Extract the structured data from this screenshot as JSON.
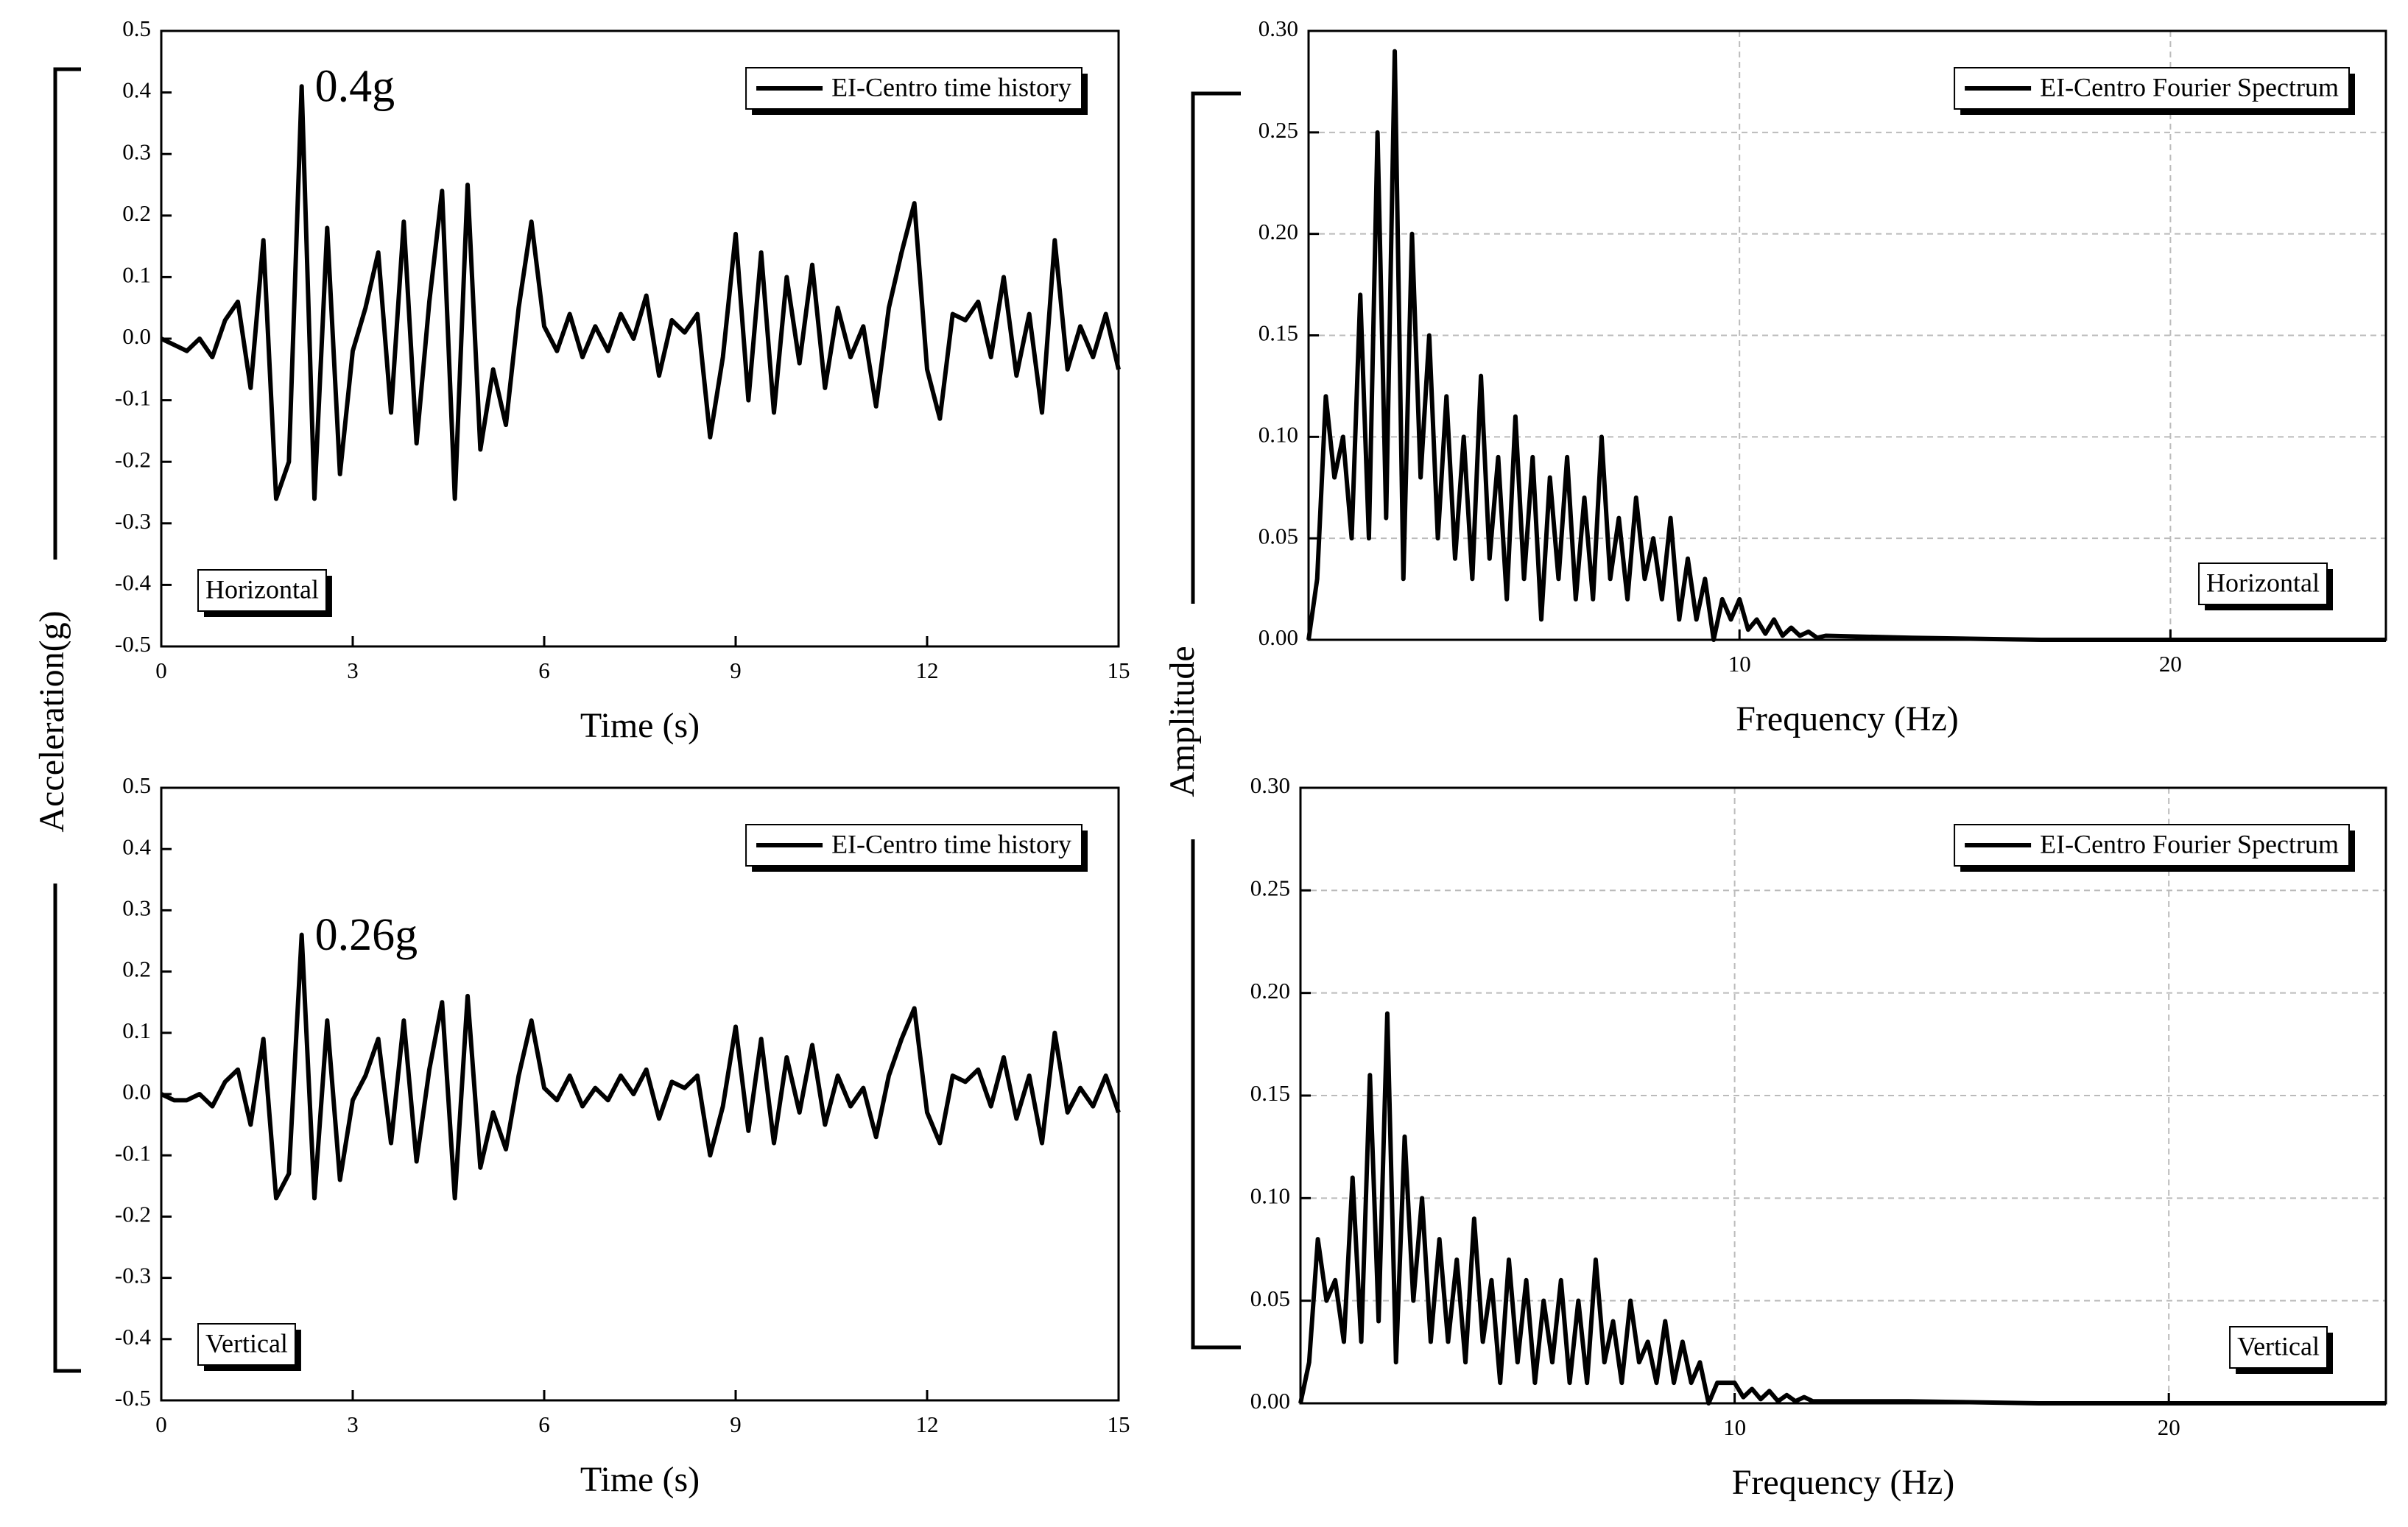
{
  "shared_labels": {
    "left": "Acceleration(g)",
    "middle": "Amplitude"
  },
  "chart_data": [
    {
      "type": "line",
      "xlabel": "Time (s)",
      "legend": "upper right",
      "panel_label": "Horizontal",
      "peak_label": "0.4g",
      "grid": false,
      "xlim": [
        0,
        15
      ],
      "xticks": [
        0,
        3,
        6,
        9,
        12,
        15
      ],
      "ylim": [
        -0.5,
        0.5
      ],
      "yticks": [
        -0.5,
        -0.4,
        -0.3,
        -0.2,
        -0.1,
        {
          "value": 0,
          "label": "0.0"
        },
        0.1,
        0.2,
        0.3,
        0.4,
        0.5
      ],
      "x": [
        0,
        0.2,
        0.4,
        0.6,
        0.8,
        1,
        1.2,
        1.4,
        1.6,
        1.8,
        2,
        2.2,
        2.4,
        2.6,
        2.8,
        3,
        3.2,
        3.4,
        3.6,
        3.8,
        4,
        4.2,
        4.4,
        4.6,
        4.8,
        5,
        5.2,
        5.4,
        5.6,
        5.8,
        6,
        6.2,
        6.4,
        6.6,
        6.8,
        7,
        7.2,
        7.4,
        7.6,
        7.8,
        8,
        8.2,
        8.4,
        8.6,
        8.8,
        9,
        9.2,
        9.4,
        9.6,
        9.8,
        10,
        10.2,
        10.4,
        10.6,
        10.8,
        11,
        11.2,
        11.4,
        11.6,
        11.8,
        12,
        12.2,
        12.4,
        12.6,
        12.8,
        13,
        13.2,
        13.4,
        13.6,
        13.8,
        14,
        14.2,
        14.4,
        14.6,
        14.8,
        15
      ],
      "series": [
        {
          "name": "EI-Centro time history",
          "color": "#000000",
          "values": [
            0,
            -0.01,
            -0.02,
            0,
            -0.03,
            0.03,
            0.06,
            -0.08,
            0.16,
            -0.26,
            -0.2,
            0.41,
            -0.26,
            0.18,
            -0.22,
            -0.02,
            0.05,
            0.14,
            -0.12,
            0.19,
            -0.17,
            0.06,
            0.24,
            -0.26,
            0.25,
            -0.18,
            -0.05,
            -0.14,
            0.05,
            0.19,
            0.02,
            -0.02,
            0.04,
            -0.03,
            0.02,
            -0.02,
            0.04,
            0,
            0.07,
            -0.06,
            0.03,
            0.01,
            0.04,
            -0.16,
            -0.03,
            0.17,
            -0.1,
            0.14,
            -0.12,
            0.1,
            -0.04,
            0.12,
            -0.08,
            0.05,
            -0.03,
            0.02,
            -0.11,
            0.05,
            0.14,
            0.22,
            -0.05,
            -0.13,
            0.04,
            0.03,
            0.06,
            -0.03,
            0.1,
            -0.06,
            0.04,
            -0.12,
            0.16,
            -0.05,
            0.02,
            -0.03,
            0.04,
            -0.05
          ]
        }
      ]
    },
    {
      "type": "line",
      "xlabel": "Time (s)",
      "legend": "upper right",
      "panel_label": "Vertical",
      "peak_label": "0.26g",
      "grid": false,
      "xlim": [
        0,
        15
      ],
      "xticks": [
        0,
        3,
        6,
        9,
        12,
        15
      ],
      "ylim": [
        -0.5,
        0.5
      ],
      "yticks": [
        -0.5,
        -0.4,
        -0.3,
        -0.2,
        -0.1,
        {
          "value": 0,
          "label": "0.0"
        },
        0.1,
        0.2,
        0.3,
        0.4,
        0.5
      ],
      "x": [
        0,
        0.2,
        0.4,
        0.6,
        0.8,
        1,
        1.2,
        1.4,
        1.6,
        1.8,
        2,
        2.2,
        2.4,
        2.6,
        2.8,
        3,
        3.2,
        3.4,
        3.6,
        3.8,
        4,
        4.2,
        4.4,
        4.6,
        4.8,
        5,
        5.2,
        5.4,
        5.6,
        5.8,
        6,
        6.2,
        6.4,
        6.6,
        6.8,
        7,
        7.2,
        7.4,
        7.6,
        7.8,
        8,
        8.2,
        8.4,
        8.6,
        8.8,
        9,
        9.2,
        9.4,
        9.6,
        9.8,
        10,
        10.2,
        10.4,
        10.6,
        10.8,
        11,
        11.2,
        11.4,
        11.6,
        11.8,
        12,
        12.2,
        12.4,
        12.6,
        12.8,
        13,
        13.2,
        13.4,
        13.6,
        13.8,
        14,
        14.2,
        14.4,
        14.6,
        14.8,
        15
      ],
      "series": [
        {
          "name": "EI-Centro time history",
          "color": "#000000",
          "values": [
            0,
            -0.01,
            -0.01,
            0,
            -0.02,
            0.02,
            0.04,
            -0.05,
            0.09,
            -0.17,
            -0.13,
            0.26,
            -0.17,
            0.12,
            -0.14,
            -0.01,
            0.03,
            0.09,
            -0.08,
            0.12,
            -0.11,
            0.04,
            0.15,
            -0.17,
            0.16,
            -0.12,
            -0.03,
            -0.09,
            0.03,
            0.12,
            0.01,
            -0.01,
            0.03,
            -0.02,
            0.01,
            -0.01,
            0.03,
            0,
            0.04,
            -0.04,
            0.02,
            0.01,
            0.03,
            -0.1,
            -0.02,
            0.11,
            -0.06,
            0.09,
            -0.08,
            0.06,
            -0.03,
            0.08,
            -0.05,
            0.03,
            -0.02,
            0.01,
            -0.07,
            0.03,
            0.09,
            0.14,
            -0.03,
            -0.08,
            0.03,
            0.02,
            0.04,
            -0.02,
            0.06,
            -0.04,
            0.03,
            -0.08,
            0.1,
            -0.03,
            0.01,
            -0.02,
            0.03,
            -0.03
          ]
        }
      ]
    },
    {
      "type": "line",
      "xlabel": "Frequency (Hz)",
      "legend": "upper right",
      "panel_label": "Horizontal",
      "grid": true,
      "xlim": [
        0,
        25
      ],
      "xticks": [
        10,
        20
      ],
      "ylim": [
        0,
        0.3
      ],
      "yticks": [
        {
          "value": 0,
          "label": "0.00"
        },
        0.05,
        {
          "value": 0.1,
          "label": "0.10"
        },
        0.15,
        {
          "value": 0.2,
          "label": "0.20"
        },
        0.25,
        {
          "value": 0.3,
          "label": "0.30"
        }
      ],
      "x": [
        0,
        0.2,
        0.4,
        0.6,
        0.8,
        1,
        1.2,
        1.4,
        1.6,
        1.8,
        2,
        2.2,
        2.4,
        2.6,
        2.8,
        3,
        3.2,
        3.4,
        3.6,
        3.8,
        4,
        4.2,
        4.4,
        4.6,
        4.8,
        5,
        5.2,
        5.4,
        5.6,
        5.8,
        6,
        6.2,
        6.4,
        6.6,
        6.8,
        7,
        7.2,
        7.4,
        7.6,
        7.8,
        8,
        8.2,
        8.4,
        8.6,
        8.8,
        9,
        9.2,
        9.4,
        9.6,
        9.8,
        10,
        10.2,
        10.4,
        10.6,
        10.8,
        11,
        11.2,
        11.4,
        11.6,
        11.8,
        12,
        14,
        17,
        20,
        25
      ],
      "series": [
        {
          "name": "EI-Centro Fourier Spectrum",
          "color": "#000000",
          "values": [
            0,
            0.03,
            0.12,
            0.08,
            0.1,
            0.05,
            0.17,
            0.05,
            0.25,
            0.06,
            0.29,
            0.03,
            0.2,
            0.08,
            0.15,
            0.05,
            0.12,
            0.04,
            0.1,
            0.03,
            0.13,
            0.04,
            0.09,
            0.02,
            0.11,
            0.03,
            0.09,
            0.01,
            0.08,
            0.03,
            0.09,
            0.02,
            0.07,
            0.02,
            0.1,
            0.03,
            0.06,
            0.02,
            0.07,
            0.03,
            0.05,
            0.02,
            0.06,
            0.01,
            0.04,
            0.01,
            0.03,
            0,
            0.02,
            0.01,
            0.02,
            0.005,
            0.01,
            0.003,
            0.01,
            0.002,
            0.006,
            0.002,
            0.004,
            0.001,
            0.002,
            0.001,
            0,
            0,
            0
          ]
        }
      ]
    },
    {
      "type": "line",
      "xlabel": "Frequency (Hz)",
      "legend": "upper right",
      "panel_label": "Vertical",
      "grid": true,
      "xlim": [
        0,
        25
      ],
      "xticks": [
        10,
        20
      ],
      "ylim": [
        0,
        0.3
      ],
      "yticks": [
        {
          "value": 0,
          "label": "0.00"
        },
        0.05,
        {
          "value": 0.1,
          "label": "0.10"
        },
        0.15,
        {
          "value": 0.2,
          "label": "0.20"
        },
        0.25,
        {
          "value": 0.3,
          "label": "0.30"
        }
      ],
      "x": [
        0,
        0.2,
        0.4,
        0.6,
        0.8,
        1,
        1.2,
        1.4,
        1.6,
        1.8,
        2,
        2.2,
        2.4,
        2.6,
        2.8,
        3,
        3.2,
        3.4,
        3.6,
        3.8,
        4,
        4.2,
        4.4,
        4.6,
        4.8,
        5,
        5.2,
        5.4,
        5.6,
        5.8,
        6,
        6.2,
        6.4,
        6.6,
        6.8,
        7,
        7.2,
        7.4,
        7.6,
        7.8,
        8,
        8.2,
        8.4,
        8.6,
        8.8,
        9,
        9.2,
        9.4,
        9.6,
        9.8,
        10,
        10.2,
        10.4,
        10.6,
        10.8,
        11,
        11.2,
        11.4,
        11.6,
        11.8,
        12,
        14,
        17,
        20,
        25
      ],
      "series": [
        {
          "name": "EI-Centro Fourier Spectrum",
          "color": "#000000",
          "values": [
            0,
            0.02,
            0.08,
            0.05,
            0.06,
            0.03,
            0.11,
            0.03,
            0.16,
            0.04,
            0.19,
            0.02,
            0.13,
            0.05,
            0.1,
            0.03,
            0.08,
            0.03,
            0.07,
            0.02,
            0.09,
            0.03,
            0.06,
            0.01,
            0.07,
            0.02,
            0.06,
            0.01,
            0.05,
            0.02,
            0.06,
            0.01,
            0.05,
            0.01,
            0.07,
            0.02,
            0.04,
            0.01,
            0.05,
            0.02,
            0.03,
            0.01,
            0.04,
            0.01,
            0.03,
            0.01,
            0.02,
            0,
            0.01,
            0.01,
            0.01,
            0.003,
            0.007,
            0.002,
            0.006,
            0.001,
            0.004,
            0.001,
            0.003,
            0.001,
            0.001,
            0.001,
            0,
            0,
            0
          ]
        }
      ]
    }
  ]
}
